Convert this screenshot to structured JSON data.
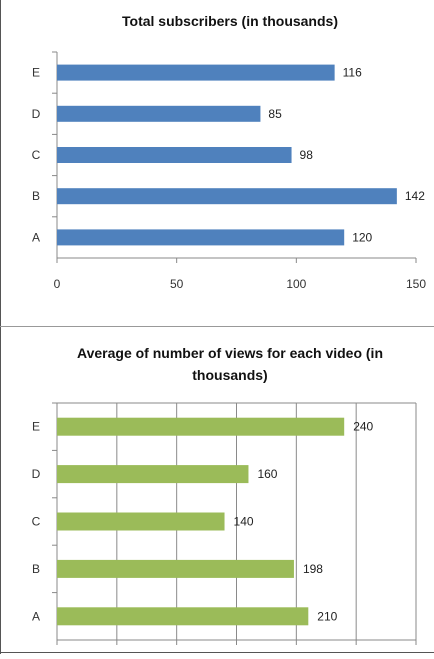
{
  "chart_data": [
    {
      "type": "bar",
      "orientation": "horizontal",
      "title": "Total subscribers (in thousands)",
      "categories": [
        "E",
        "D",
        "C",
        "B",
        "A"
      ],
      "values": [
        116,
        85,
        98,
        142,
        120
      ],
      "xlim": [
        0,
        150
      ],
      "xticks": [
        "0",
        "50",
        "100",
        "150"
      ],
      "color": "#4f81bd",
      "grid": false,
      "legend": "none"
    },
    {
      "type": "bar",
      "orientation": "horizontal",
      "title_lines": [
        "Average of number of views for each video (in",
        "thousands)"
      ],
      "categories": [
        "E",
        "D",
        "C",
        "B",
        "A"
      ],
      "values": [
        240,
        160,
        140,
        198,
        210
      ],
      "xlim": [
        0,
        300
      ],
      "xtick_count": 7,
      "color": "#9bbb59",
      "grid": true,
      "legend": "none"
    }
  ]
}
